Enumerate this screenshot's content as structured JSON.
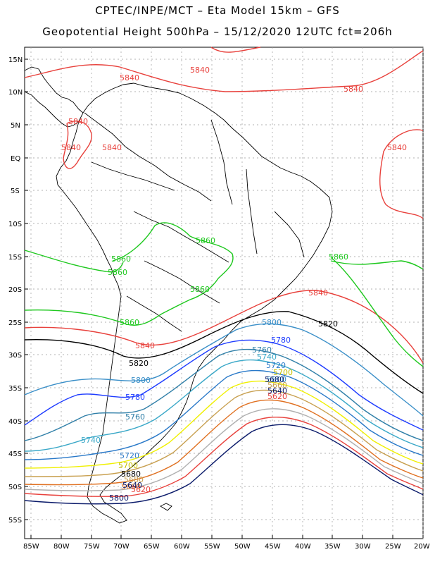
{
  "title_line1": "CPTEC/INPE/MCT –  Eta Model 15km – GFS",
  "title_line2": "Geopotential Height 500hPa – 15/12/2020 12UTC fct=206h",
  "lat_labels": [
    "15N",
    "10N",
    "5N",
    "EQ",
    "5S",
    "10S",
    "15S",
    "20S",
    "25S",
    "30S",
    "35S",
    "40S",
    "45S",
    "50S",
    "55S"
  ],
  "lon_labels": [
    "85W",
    "80W",
    "75W",
    "70W",
    "65W",
    "60W",
    "55W",
    "50W",
    "45W",
    "40W",
    "35W",
    "30W",
    "25W",
    "20W"
  ],
  "contour_levels": [
    "5840",
    "5820",
    "5800",
    "5780",
    "5760",
    "5740",
    "5720",
    "5700",
    "5680",
    "5660",
    "5640",
    "5620",
    "5600"
  ],
  "contour_colors": {
    "5840": "#e8413c",
    "5860": "#1ec81e",
    "5820": "#000000",
    "5800": "#3a8fc8",
    "5780": "#1e3cff",
    "5760": "#2f7fa8",
    "5740": "#3aa8c8",
    "5720": "#2878c8",
    "5700": "#f0f000",
    "5680": "#c8a050",
    "5660": "#e07020",
    "5640": "#b0b0b0",
    "5620": "#e8413c",
    "5600": "#0a1a6a"
  },
  "labels": {
    "l5840_a": "5840",
    "l5840_b": "5840",
    "l5840_c": "5840",
    "l5840_d": "5840",
    "l5840_e": "5840",
    "l5840_f": "5840",
    "l5840_g": "5840",
    "l5840_h": "5840",
    "l5840_i": "5840",
    "l5860_a": "5860",
    "l5860_b": "5860",
    "l5860_c": "5860",
    "l5860_d": "5860",
    "l5860_e": "5860",
    "l5860_f": "5860",
    "l5820_a": "5820",
    "l5820_b": "5820",
    "l5800_a": "5800",
    "l5800_b": "5800",
    "l5800_c": "5800",
    "l5800_d": "5800",
    "l5780_a": "5780",
    "l5780_b": "5780",
    "l5760_a": "5760",
    "l5760_b": "5760",
    "l5740_a": "5740",
    "l5740_b": "5740",
    "l5720_a": "5720",
    "l5720_b": "5720",
    "l5700_a": "5700",
    "l5700_b": "5700",
    "l5680_a": "5680",
    "l5680_b": "5680",
    "l5680_c": "5680",
    "l5660_a": "5660",
    "l5660_b": "5660",
    "l5640_a": "5640",
    "l5640_b": "5640",
    "l5620_a": "5620",
    "l5620_b": "5620"
  }
}
